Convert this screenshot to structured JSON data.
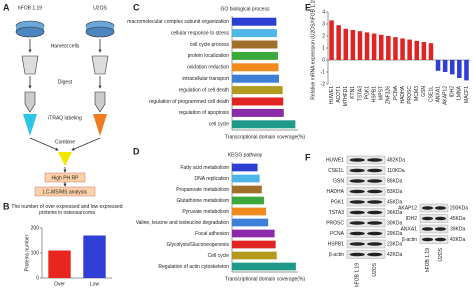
{
  "panel_labels": [
    "A",
    "B",
    "C",
    "D",
    "E",
    "F"
  ],
  "workflow": {
    "cells": [
      "hFOB 1.19",
      "U2OS"
    ],
    "steps": [
      "Harvest cells",
      "Digest",
      "iTRAQ labeling",
      "Combine",
      "High PH RP",
      "LC-MS/MS analysis"
    ]
  },
  "chart_data": [
    {
      "type": "bar",
      "title": "The number of over expressed and low expressed proteins in osteosarcoma",
      "y_label": "Proteins number",
      "categories": [
        "Over",
        "Low"
      ],
      "values": [
        110,
        170
      ],
      "colors": [
        "#e8261f",
        "#2f3fd6"
      ],
      "ylim": [
        0,
        200
      ],
      "yticks": [
        0,
        100,
        200
      ]
    },
    {
      "type": "hbar",
      "title": "GO biological process",
      "x_label": "Transcriptional domain coverage(%)",
      "categories": [
        "macromolecular complex subunit organization",
        "cellular response to stress",
        "cell cycle process",
        "protein localization",
        "oxidation reduction",
        "intracellular transport",
        "regulation of cell death",
        "regulation of programmed cell death",
        "regulation of apoptosis",
        "cell cycle"
      ],
      "values": [
        8.4,
        8.5,
        8.6,
        8.7,
        8.8,
        8.9,
        9.6,
        9.7,
        9.8,
        12
      ],
      "colors": [
        "#2b3fd0",
        "#4fb6e8",
        "#a0702a",
        "#3aa83a",
        "#f08a1c",
        "#3b7fd6",
        "#b29a1e",
        "#e02424",
        "#8a2aa8",
        "#1f9a8a"
      ],
      "xlim": [
        0,
        12.5
      ]
    },
    {
      "type": "hbar",
      "title": "KEGG pathway",
      "x_label": "Transcriptional domain coverage(%)",
      "categories": [
        "Fatty acid metabolism",
        "DNA replication",
        "Propanoate metabolism",
        "Glutathione metabolism",
        "Pyruvate metabolism",
        "Valine, leucine and isoleucine degradation",
        "Focal adhesion",
        "Glycolysis/Gluconeogenesis",
        "Cell cycle",
        "Regulation of actin cytoskeleton"
      ],
      "values": [
        1.2,
        1.3,
        1.4,
        1.5,
        1.6,
        1.7,
        2.0,
        2.05,
        2.1,
        3.0
      ],
      "colors": [
        "#2b3fd0",
        "#4fb6e8",
        "#a0702a",
        "#3aa83a",
        "#f08a1c",
        "#3b7fd6",
        "#8a2aa8",
        "#e02424",
        "#b29a1e",
        "#1f9a8a"
      ],
      "xlim": [
        0,
        3.1
      ]
    },
    {
      "type": "bar",
      "y_label": "Relative mRNA expression (U2OS/hFOB 1.19)",
      "categories": [
        "HUWE1",
        "ACOT1",
        "MTHFD1",
        "KTN1",
        "TSTA3",
        "PGK1",
        "HSPB1",
        "MPST",
        "ZNF326",
        "PCNA",
        "HADHA",
        "PROSC",
        "MCM3",
        "GSN",
        "CSE1L",
        "ANXA1",
        "AKAP12",
        "IDH2",
        "LMNA",
        "MACF1"
      ],
      "values": [
        3.3,
        2.9,
        2.6,
        2.5,
        2.4,
        2.3,
        2.2,
        2.1,
        2.0,
        1.9,
        1.8,
        1.7,
        1.6,
        1.5,
        1.4,
        -0.9,
        -1.0,
        -1.2,
        -1.5,
        -1.7
      ],
      "colors": [
        "#e02424",
        "#e02424",
        "#e02424",
        "#e02424",
        "#e02424",
        "#e02424",
        "#e02424",
        "#e02424",
        "#e02424",
        "#e02424",
        "#e02424",
        "#e02424",
        "#e02424",
        "#e02424",
        "#e02424",
        "#2f3fd6",
        "#2f3fd6",
        "#2f3fd6",
        "#2f3fd6",
        "#2f3fd6"
      ],
      "ylim": [
        -2,
        4
      ],
      "yticks": [
        -2,
        -1,
        0,
        1,
        2,
        3,
        4
      ]
    }
  ],
  "blots": [
    {
      "bands": [
        {
          "name": "HUWE1",
          "size": "482KDa"
        },
        {
          "name": "CSE1L",
          "size": "110KDa"
        },
        {
          "name": "GSN",
          "size": "86KDa"
        },
        {
          "name": "HADHA",
          "size": "83KDa"
        },
        {
          "name": "PGK1",
          "size": "45KDa"
        },
        {
          "name": "TSTA3",
          "size": "36KDa"
        },
        {
          "name": "PROSC",
          "size": "30KDa"
        },
        {
          "name": "PCNA",
          "size": "29KDa"
        },
        {
          "name": "HSPB1",
          "size": "23KDa"
        },
        {
          "name": "β-actin",
          "size": "42KDa"
        }
      ],
      "lanes": [
        "hFOB 1.19",
        "U2OS"
      ]
    },
    {
      "bands": [
        {
          "name": "AKAP12",
          "size": "200KDa"
        },
        {
          "name": "IDH2",
          "size": "45KDa"
        },
        {
          "name": "ANXA1",
          "size": "39KDa"
        },
        {
          "name": "β-actin",
          "size": "42KDa"
        }
      ],
      "lanes": [
        "hFOB 1.19",
        "U2OS"
      ]
    }
  ]
}
